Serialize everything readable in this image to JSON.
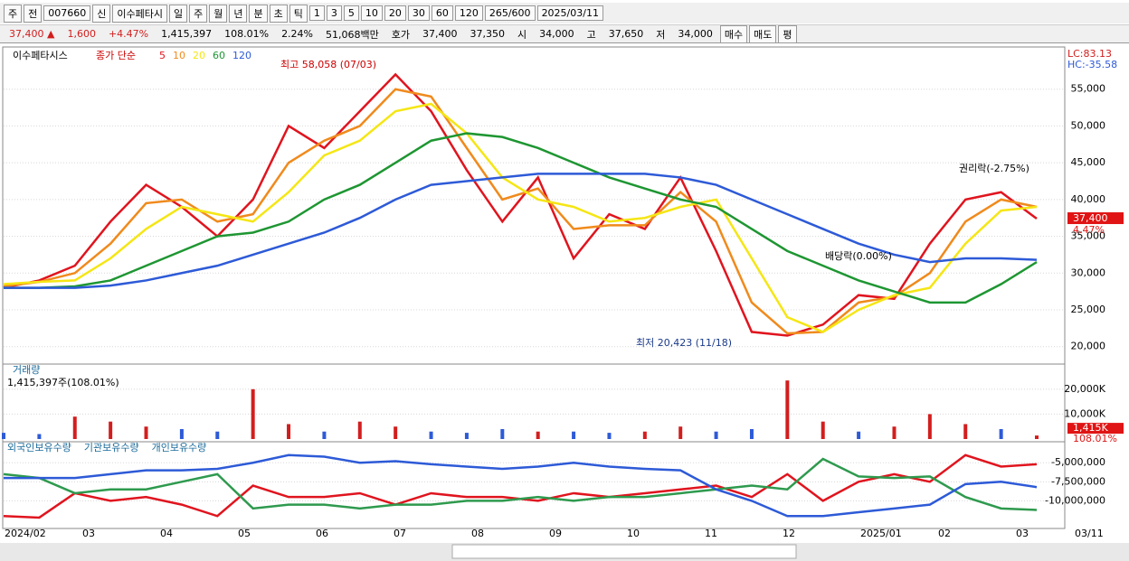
{
  "toolbar": [
    "주",
    "전",
    "007660",
    "신",
    "이수페타시",
    "일",
    "주",
    "월",
    "년",
    "분",
    "초",
    "틱",
    "1",
    "3",
    "5",
    "10",
    "20",
    "30",
    "60",
    "120",
    "265/600",
    "2025/03/11"
  ],
  "info_bar": [
    "37,400 ▲",
    "1,600",
    "+4.47%",
    "1,415,397",
    "108.01%",
    "2.24%",
    "51,068백만",
    "호가",
    "37,400",
    "37,350",
    "시",
    "34,000",
    "고",
    "37,650",
    "저",
    "34,000",
    "매수",
    "매도",
    "평"
  ],
  "time_axis": [
    "2024/02",
    "03",
    "04",
    "05",
    "06",
    "07",
    "08",
    "09",
    "10",
    "11",
    "12",
    "2025/01",
    "02",
    "03",
    "03/11"
  ],
  "chart_data": [
    {
      "type": "line",
      "title": "이수페타시스",
      "subtitle": "종가 단순",
      "ylim": [
        18000,
        60000
      ],
      "yticks": [
        {
          "value": 20000,
          "label": "20,000"
        },
        {
          "value": 25000,
          "label": "25,000"
        },
        {
          "value": 30000,
          "label": "30,000"
        },
        {
          "value": 35000,
          "label": "35,000"
        },
        {
          "value": 40000,
          "label": "40,000"
        },
        {
          "value": 45000,
          "label": "45,000"
        },
        {
          "value": 50000,
          "label": "50,000"
        },
        {
          "value": 55000,
          "label": "55,000"
        }
      ],
      "grid": true,
      "indicators": [
        "LC:83.13",
        "HC:-35.58"
      ],
      "annotations": [
        "최고 58,058 (07/03)",
        "최저 20,423 (11/18)",
        "배당락(0.00%)",
        "권리락(-2.75%)"
      ],
      "last_price": "37,400",
      "last_change": "4.47%",
      "series": [
        {
          "name": "5",
          "color": "#e0141e",
          "values": [
            28000,
            29000,
            31000,
            37000,
            42000,
            39000,
            35000,
            40000,
            50000,
            47000,
            52000,
            57000,
            52000,
            44000,
            37000,
            43000,
            32000,
            38000,
            36000,
            43000,
            33000,
            22000,
            21500,
            23000,
            27000,
            26500,
            34000,
            40000,
            41000,
            37400
          ]
        },
        {
          "name": "10",
          "color": "#f08a1c",
          "values": [
            28200,
            28800,
            30000,
            34000,
            39500,
            40000,
            37000,
            38000,
            45000,
            48000,
            50000,
            55000,
            54000,
            47000,
            40000,
            41500,
            36000,
            36500,
            36500,
            41000,
            37000,
            26000,
            21800,
            22000,
            26000,
            26800,
            30000,
            37000,
            40000,
            39000
          ]
        },
        {
          "name": "20",
          "color": "#f5e614",
          "values": [
            28500,
            28800,
            29000,
            32000,
            36000,
            39000,
            38000,
            37000,
            41000,
            46000,
            48000,
            52000,
            53000,
            49000,
            43000,
            40000,
            39000,
            37000,
            37500,
            39000,
            40000,
            32000,
            24000,
            22000,
            25000,
            27000,
            28000,
            34000,
            38500,
            39000
          ]
        },
        {
          "name": "60",
          "color": "#1e9632",
          "values": [
            28000,
            28000,
            28200,
            29000,
            31000,
            33000,
            35000,
            35500,
            37000,
            40000,
            42000,
            45000,
            48000,
            49000,
            48500,
            47000,
            45000,
            43000,
            41500,
            40000,
            39000,
            36000,
            33000,
            31000,
            29000,
            27500,
            26000,
            26000,
            28500,
            31500
          ]
        },
        {
          "name": "120",
          "color": "#2d5ad7",
          "values": [
            28000,
            28000,
            28000,
            28300,
            29000,
            30000,
            31000,
            32500,
            34000,
            35500,
            37500,
            40000,
            42000,
            42500,
            43000,
            43500,
            43500,
            43500,
            43500,
            43000,
            42000,
            40000,
            38000,
            36000,
            34000,
            32500,
            31500,
            32000,
            32000,
            31800
          ]
        }
      ]
    },
    {
      "type": "bar",
      "title": "거래량",
      "subtitle": "1,415,397주(108.01%)",
      "ylim": [
        0,
        29000
      ],
      "yticks": [
        {
          "value": 10000,
          "label": "10,000K"
        },
        {
          "value": 20000,
          "label": "20,000K"
        }
      ],
      "grid": true,
      "last_labels": [
        "1,415K",
        "108.01%"
      ],
      "values": [
        2500,
        2000,
        9000,
        7000,
        5000,
        4000,
        3000,
        20000,
        6000,
        3000,
        7000,
        5000,
        3000,
        2500,
        4000,
        3000,
        3000,
        2500,
        3000,
        5000,
        3000,
        4000,
        23500,
        7000,
        3000,
        5000,
        10000,
        6000,
        4000,
        1415
      ],
      "colors": [
        "#2d5ad7",
        "#2d5ad7",
        "#d21e1e",
        "#d21e1e",
        "#d21e1e",
        "#2d5ad7",
        "#2d5ad7",
        "#d21e1e",
        "#d21e1e",
        "#2d5ad7",
        "#d21e1e",
        "#d21e1e",
        "#2d5ad7",
        "#2d5ad7",
        "#2d5ad7",
        "#d21e1e",
        "#2d5ad7",
        "#2d5ad7",
        "#d21e1e",
        "#d21e1e",
        "#2d5ad7",
        "#2d5ad7",
        "#d21e1e",
        "#d21e1e",
        "#2d5ad7",
        "#d21e1e",
        "#d21e1e",
        "#d21e1e",
        "#2d5ad7",
        "#d21e1e"
      ]
    },
    {
      "type": "line",
      "ylim": [
        -12800000,
        -2600000
      ],
      "yticks": [
        {
          "value": -10000000,
          "label": "-10,000,000"
        },
        {
          "value": -7500000,
          "label": "-7,500,000"
        },
        {
          "value": -5000000,
          "label": "-5,000,000"
        }
      ],
      "grid": true,
      "series": [
        {
          "name": "외국인보유수량",
          "color": "#e0141e",
          "values": [
            -12000000,
            -12200000,
            -9000000,
            -10000000,
            -9500000,
            -10500000,
            -12000000,
            -8000000,
            -9500000,
            -9500000,
            -9000000,
            -10500000,
            -9000000,
            -9500000,
            -9500000,
            -10000000,
            -9000000,
            -9500000,
            -9000000,
            -8500000,
            -8000000,
            -9500000,
            -6500000,
            -10000000,
            -7500000,
            -6500000,
            -7500000,
            -4000000,
            -5500000,
            -5200000
          ]
        },
        {
          "name": "기관보유수량",
          "color": "#2e9a4e",
          "values": [
            -6500000,
            -7000000,
            -9000000,
            -8500000,
            -8500000,
            -7500000,
            -6500000,
            -11000000,
            -10500000,
            -10500000,
            -11000000,
            -10500000,
            -10500000,
            -10000000,
            -10000000,
            -9500000,
            -10000000,
            -9500000,
            -9500000,
            -9000000,
            -8500000,
            -8000000,
            -8500000,
            -4500000,
            -6800000,
            -7000000,
            -6800000,
            -9500000,
            -11000000,
            -11200000
          ]
        },
        {
          "name": "개인보유수량",
          "color": "#2d5ad7",
          "values": [
            -7000000,
            -7000000,
            -7000000,
            -6500000,
            -6000000,
            -6000000,
            -5800000,
            -5000000,
            -4000000,
            -4200000,
            -5000000,
            -4800000,
            -5200000,
            -5500000,
            -5800000,
            -5500000,
            -5000000,
            -5500000,
            -5800000,
            -6000000,
            -8500000,
            -10000000,
            -12000000,
            -12000000,
            -11500000,
            -11000000,
            -10500000,
            -7800000,
            -7500000,
            -8200000
          ]
        }
      ]
    }
  ]
}
